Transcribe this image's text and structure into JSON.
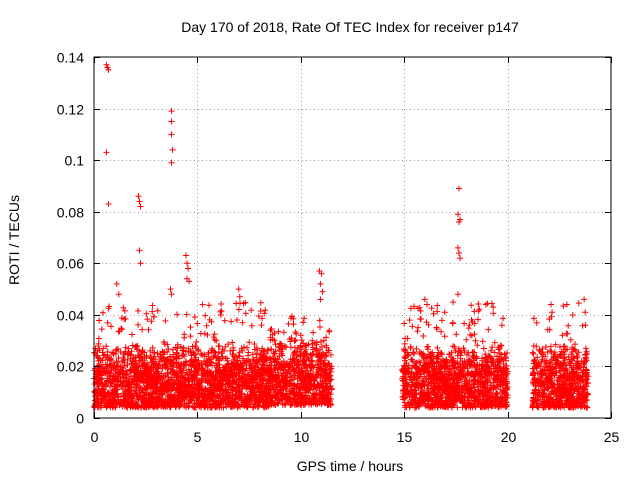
{
  "chart_data": {
    "type": "scatter",
    "title": "Day 170 of 2018, Rate Of TEC Index for receiver p147",
    "xlabel": "GPS time / hours",
    "ylabel": "ROTI / TECUs",
    "xlim": [
      0,
      25
    ],
    "ylim": [
      0,
      0.14
    ],
    "xticks": [
      0,
      5,
      10,
      15,
      20,
      25
    ],
    "xtick_labels": [
      "0",
      "5",
      "10",
      "15",
      "20",
      "25"
    ],
    "yticks": [
      0,
      0.02,
      0.04,
      0.06,
      0.08,
      0.1,
      0.12,
      0.14
    ],
    "ytick_labels": [
      "0",
      "0.02",
      "0.04",
      "0.06",
      "0.08",
      "0.1",
      "0.12",
      "0.14"
    ],
    "grid": true,
    "marker": "+",
    "color": "#ff0000",
    "dense_segments": [
      {
        "x_start": 0.0,
        "x_end": 8.5,
        "y_low": 0.004,
        "y_high": 0.03,
        "tail_max": 0.045
      },
      {
        "x_start": 8.5,
        "x_end": 11.5,
        "y_low": 0.005,
        "y_high": 0.032,
        "tail_max": 0.04
      },
      {
        "x_start": 14.9,
        "x_end": 20.0,
        "y_low": 0.004,
        "y_high": 0.03,
        "tail_max": 0.045
      },
      {
        "x_start": 21.2,
        "x_end": 23.9,
        "y_low": 0.004,
        "y_high": 0.03,
        "tail_max": 0.045
      }
    ],
    "outliers": [
      {
        "x": 0.6,
        "y": 0.137
      },
      {
        "x": 0.65,
        "y": 0.136
      },
      {
        "x": 0.7,
        "y": 0.135
      },
      {
        "x": 0.6,
        "y": 0.103
      },
      {
        "x": 0.7,
        "y": 0.083
      },
      {
        "x": 1.1,
        "y": 0.052
      },
      {
        "x": 1.2,
        "y": 0.048
      },
      {
        "x": 2.15,
        "y": 0.086
      },
      {
        "x": 2.2,
        "y": 0.084
      },
      {
        "x": 2.25,
        "y": 0.082
      },
      {
        "x": 2.2,
        "y": 0.065
      },
      {
        "x": 2.25,
        "y": 0.06
      },
      {
        "x": 3.75,
        "y": 0.119
      },
      {
        "x": 3.75,
        "y": 0.115
      },
      {
        "x": 3.75,
        "y": 0.11
      },
      {
        "x": 3.8,
        "y": 0.104
      },
      {
        "x": 3.75,
        "y": 0.099
      },
      {
        "x": 3.7,
        "y": 0.05
      },
      {
        "x": 3.75,
        "y": 0.048
      },
      {
        "x": 4.45,
        "y": 0.063
      },
      {
        "x": 4.5,
        "y": 0.06
      },
      {
        "x": 4.55,
        "y": 0.058
      },
      {
        "x": 4.5,
        "y": 0.054
      },
      {
        "x": 4.6,
        "y": 0.053
      },
      {
        "x": 7.0,
        "y": 0.05
      },
      {
        "x": 7.05,
        "y": 0.047
      },
      {
        "x": 10.9,
        "y": 0.057
      },
      {
        "x": 11.0,
        "y": 0.056
      },
      {
        "x": 10.95,
        "y": 0.052
      },
      {
        "x": 11.05,
        "y": 0.049
      },
      {
        "x": 10.95,
        "y": 0.046
      },
      {
        "x": 16.0,
        "y": 0.046
      },
      {
        "x": 16.1,
        "y": 0.044
      },
      {
        "x": 17.65,
        "y": 0.089
      },
      {
        "x": 17.6,
        "y": 0.079
      },
      {
        "x": 17.7,
        "y": 0.077
      },
      {
        "x": 17.65,
        "y": 0.076
      },
      {
        "x": 17.6,
        "y": 0.066
      },
      {
        "x": 17.65,
        "y": 0.064
      },
      {
        "x": 17.7,
        "y": 0.062
      },
      {
        "x": 17.6,
        "y": 0.048
      },
      {
        "x": 18.95,
        "y": 0.044
      },
      {
        "x": 19.3,
        "y": 0.043
      },
      {
        "x": 22.1,
        "y": 0.044
      },
      {
        "x": 22.15,
        "y": 0.041
      },
      {
        "x": 23.7,
        "y": 0.046
      },
      {
        "x": 23.75,
        "y": 0.041
      }
    ]
  }
}
